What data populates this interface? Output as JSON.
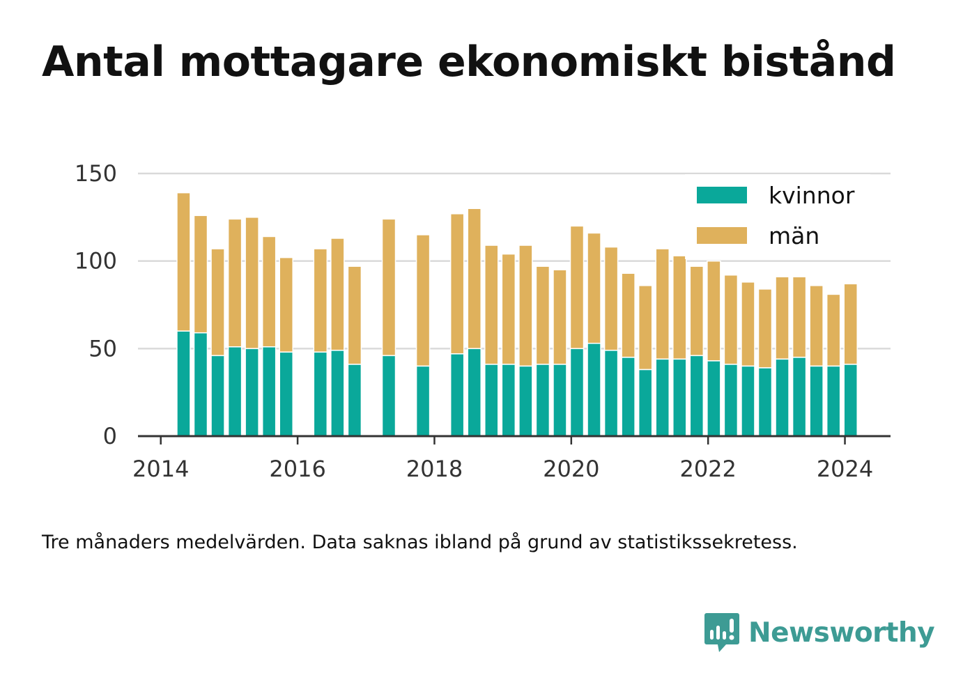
{
  "title": "Antal mottagare ekonomiskt bistånd",
  "caption": "Tre månaders medelvärden. Data saknas ibland på grund av statistikssekretess.",
  "brand": {
    "name": "Newsworthy",
    "icon": "newsworthy-logo-icon",
    "color": "#3d9b94"
  },
  "chart_data": {
    "type": "bar",
    "stacked": true,
    "x_type": "date",
    "series": [
      {
        "name": "kvinnor",
        "color": "#0aa89a",
        "values": [
          60,
          59,
          46,
          51,
          50,
          51,
          48,
          48,
          49,
          41,
          46,
          40,
          47,
          50,
          41,
          41,
          40,
          41,
          41,
          50,
          53,
          49,
          45,
          38,
          44,
          44,
          46,
          43,
          41,
          40,
          39,
          44,
          45,
          40,
          40,
          41
        ]
      },
      {
        "name": "män",
        "color": "#dfb15c",
        "values": [
          79,
          67,
          61,
          73,
          75,
          63,
          54,
          59,
          64,
          56,
          78,
          75,
          80,
          80,
          68,
          63,
          69,
          56,
          54,
          70,
          63,
          59,
          48,
          48,
          63,
          59,
          51,
          57,
          51,
          48,
          45,
          47,
          46,
          46,
          41,
          46
        ]
      }
    ],
    "x": [
      "2014-05",
      "2014-08",
      "2014-11",
      "2015-02",
      "2015-05",
      "2015-08",
      "2015-11",
      "2016-05",
      "2016-08",
      "2016-11",
      "2017-05",
      "2017-11",
      "2018-05",
      "2018-08",
      "2018-11",
      "2019-02",
      "2019-05",
      "2019-08",
      "2019-11",
      "2020-02",
      "2020-05",
      "2020-08",
      "2020-11",
      "2021-02",
      "2021-05",
      "2021-08",
      "2021-11",
      "2022-02",
      "2022-05",
      "2022-08",
      "2022-11",
      "2023-02",
      "2023-05",
      "2023-08",
      "2023-11",
      "2024-02"
    ],
    "xticks": [
      "2014",
      "2016",
      "2018",
      "2020",
      "2022",
      "2024"
    ],
    "yticks": [
      0,
      50,
      100,
      150
    ],
    "ylim": [
      0,
      150
    ],
    "xlim": [
      "2013-09",
      "2024-09"
    ],
    "grid": true,
    "legend_position": "top-right"
  }
}
